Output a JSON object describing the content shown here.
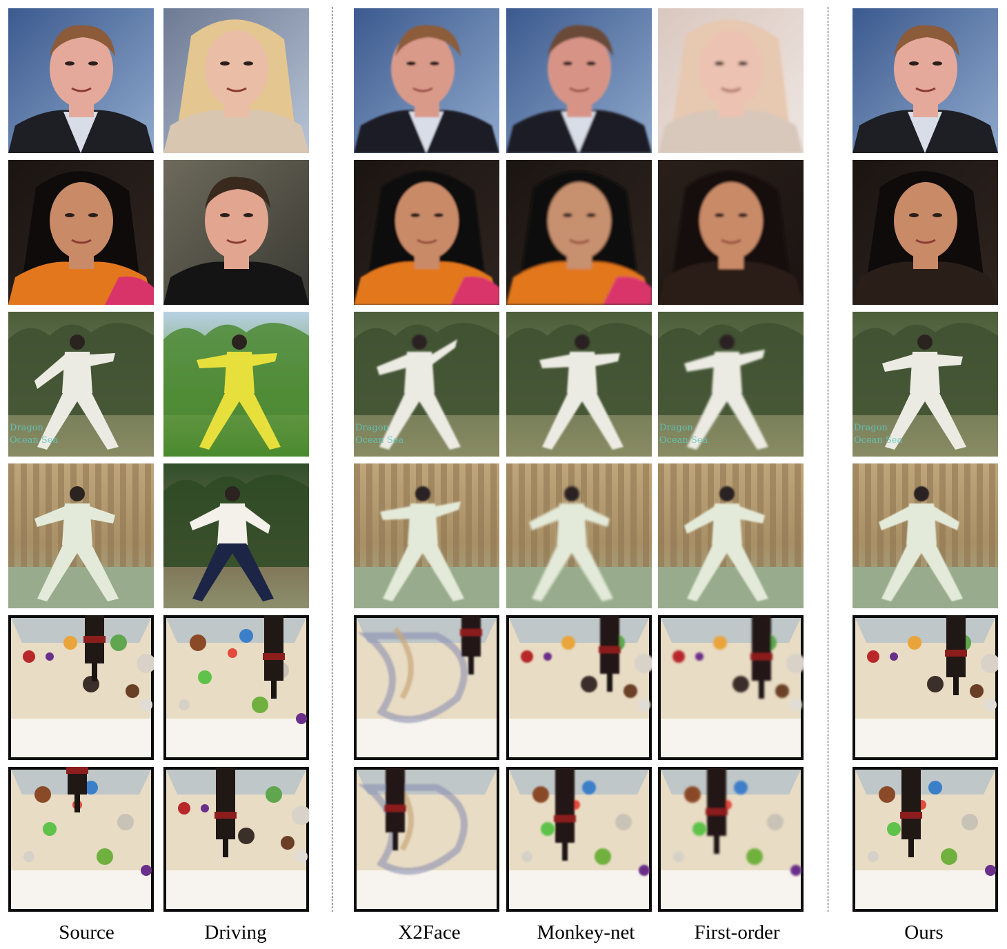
{
  "columns": [
    {
      "key": "source",
      "label": "Source"
    },
    {
      "key": "driving",
      "label": "Driving"
    },
    {
      "key": "x2face",
      "label": "X2Face"
    },
    {
      "key": "monkeynet",
      "label": "Monkey-net"
    },
    {
      "key": "firstorder",
      "label": "First-order"
    },
    {
      "key": "ours",
      "label": "Ours"
    }
  ],
  "rows": [
    {
      "key": "face-1",
      "subject": "man in suit"
    },
    {
      "key": "face-2",
      "subject": "woman with dark hair"
    },
    {
      "key": "taichi-1",
      "subject": "tai chi outdoor"
    },
    {
      "key": "taichi-2",
      "subject": "tai chi hall"
    },
    {
      "key": "robot-1",
      "subject": "robot arm with toys"
    },
    {
      "key": "robot-2",
      "subject": "robot arm with toys"
    }
  ],
  "overlay_text": {
    "dragon": "Dragon",
    "ocean": "Ocean Sea"
  }
}
